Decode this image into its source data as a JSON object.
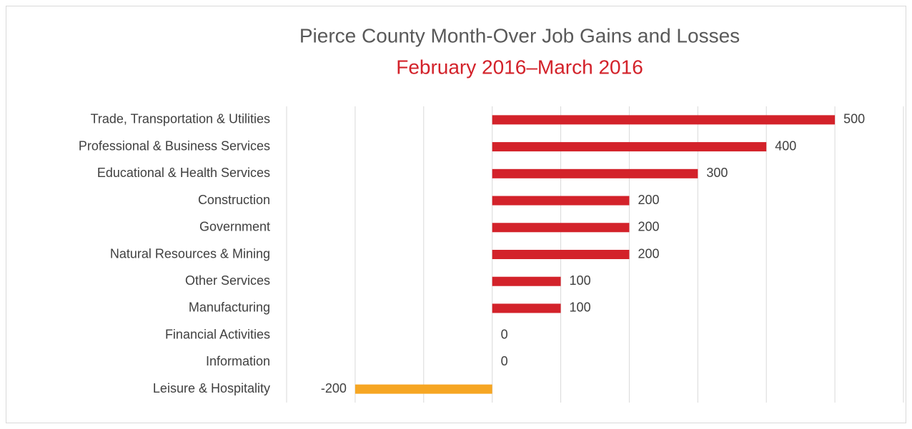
{
  "chart_data": {
    "type": "barh",
    "title": "Pierce County Month-Over Job Gains and Losses",
    "subtitle": "February 2016–March 2016",
    "categories": [
      "Trade, Transportation & Utilities",
      "Professional & Business Services",
      "Educational & Health Services",
      "Construction",
      "Government",
      "Natural Resources & Mining",
      "Other Services",
      "Manufacturing",
      "Financial Activities",
      "Information",
      "Leisure & Hospitality"
    ],
    "values": [
      500,
      400,
      300,
      200,
      200,
      200,
      100,
      100,
      0,
      0,
      -200
    ],
    "colors": [
      "#d3222a",
      "#d3222a",
      "#d3222a",
      "#d3222a",
      "#d3222a",
      "#d3222a",
      "#d3222a",
      "#d3222a",
      "#d3222a",
      "#d3222a",
      "#f6a623"
    ],
    "xlim": [
      -300,
      600
    ],
    "xticks": [
      -300,
      -200,
      -100,
      0,
      100,
      200,
      300,
      400,
      500,
      600
    ],
    "grid": true
  }
}
